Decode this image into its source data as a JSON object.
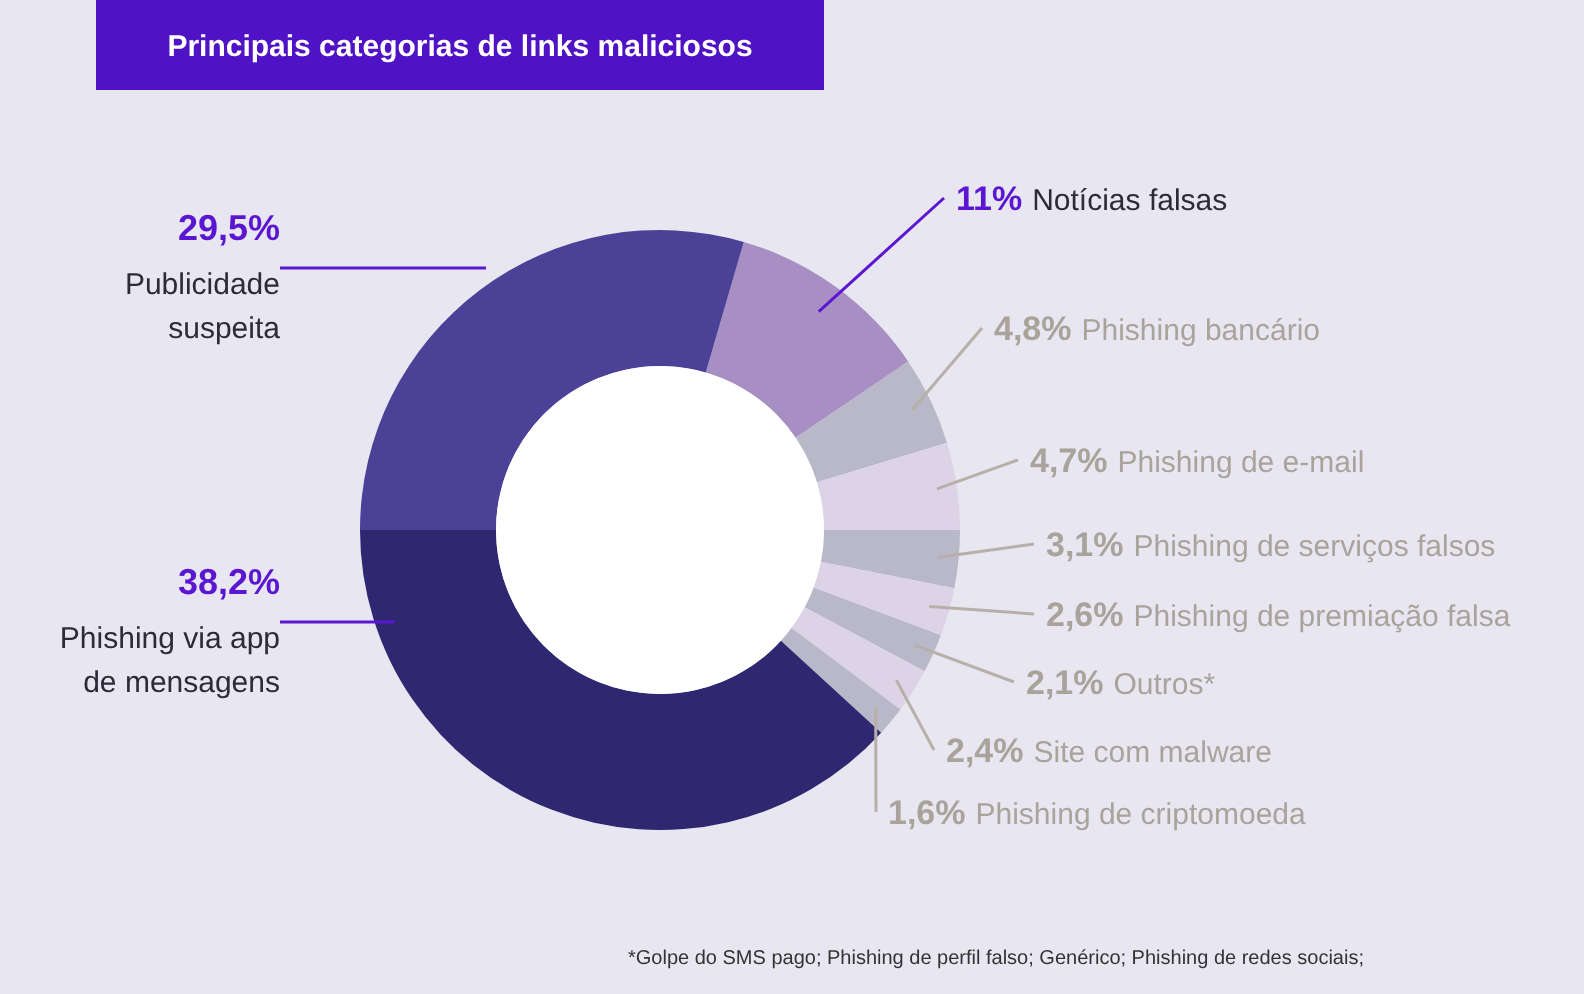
{
  "chart_data": {
    "type": "donut",
    "title": "Principais categorias de links maliciosos",
    "categories": [
      "Notícias falsas",
      "Phishing bancário",
      "Phishing de e-mail",
      "Phishing de serviços falsos",
      "Phishing de premiação falsa",
      "Outros*",
      "Site com malware",
      "Phishing de criptomoeda",
      "Phishing via app de mensagens",
      "Publicidade suspeita"
    ],
    "values": [
      11,
      4.8,
      4.7,
      3.1,
      2.6,
      2.1,
      2.4,
      1.6,
      38.2,
      29.5
    ],
    "value_labels": [
      "11%",
      "4,8%",
      "4,7%",
      "3,1%",
      "2,6%",
      "2,1%",
      "2,4%",
      "1,6%",
      "38,2%",
      "29,5%"
    ],
    "colors": [
      "#a78fc3",
      "#b9b8c8",
      "#ddd3e6",
      "#b9b8c8",
      "#ddd3e6",
      "#b9b8c8",
      "#ddd3e6",
      "#b9b8c8",
      "#2f2870",
      "#4b4196"
    ],
    "annotations": [
      "*Golpe do SMS pago; Phishing de perfil falso; Genérico; Phishing de redes sociais;"
    ]
  }
}
